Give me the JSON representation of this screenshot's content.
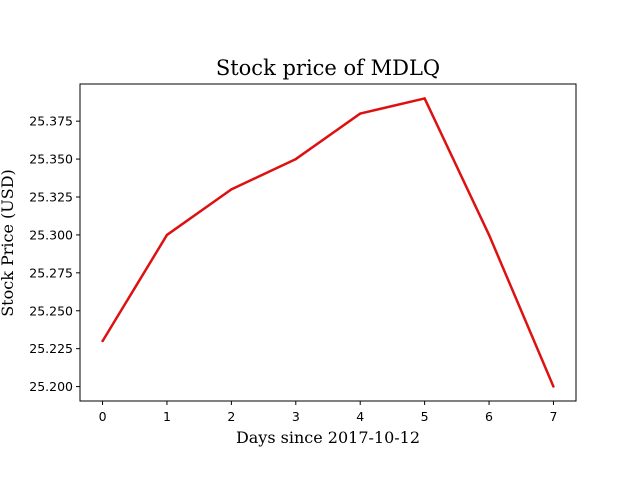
{
  "chart_data": {
    "type": "line",
    "title": "Stock price of MDLQ",
    "xlabel": "Days since 2017-10-12",
    "ylabel": "Stock Price (USD)",
    "x": [
      0,
      1,
      2,
      3,
      4,
      5,
      6,
      7
    ],
    "series": [
      {
        "values": [
          25.23,
          25.3,
          25.33,
          25.35,
          25.38,
          25.39,
          25.3,
          25.2
        ],
        "color": "#dd1111"
      }
    ],
    "xticks": [
      "0",
      "1",
      "2",
      "3",
      "4",
      "5",
      "6",
      "7"
    ],
    "yticks": [
      "25.200",
      "25.225",
      "25.250",
      "25.275",
      "25.300",
      "25.325",
      "25.350",
      "25.375"
    ],
    "xlim": [
      -0.35,
      7.35
    ],
    "ylim": [
      25.1905,
      25.3995
    ],
    "grid": false,
    "legend": "none"
  }
}
